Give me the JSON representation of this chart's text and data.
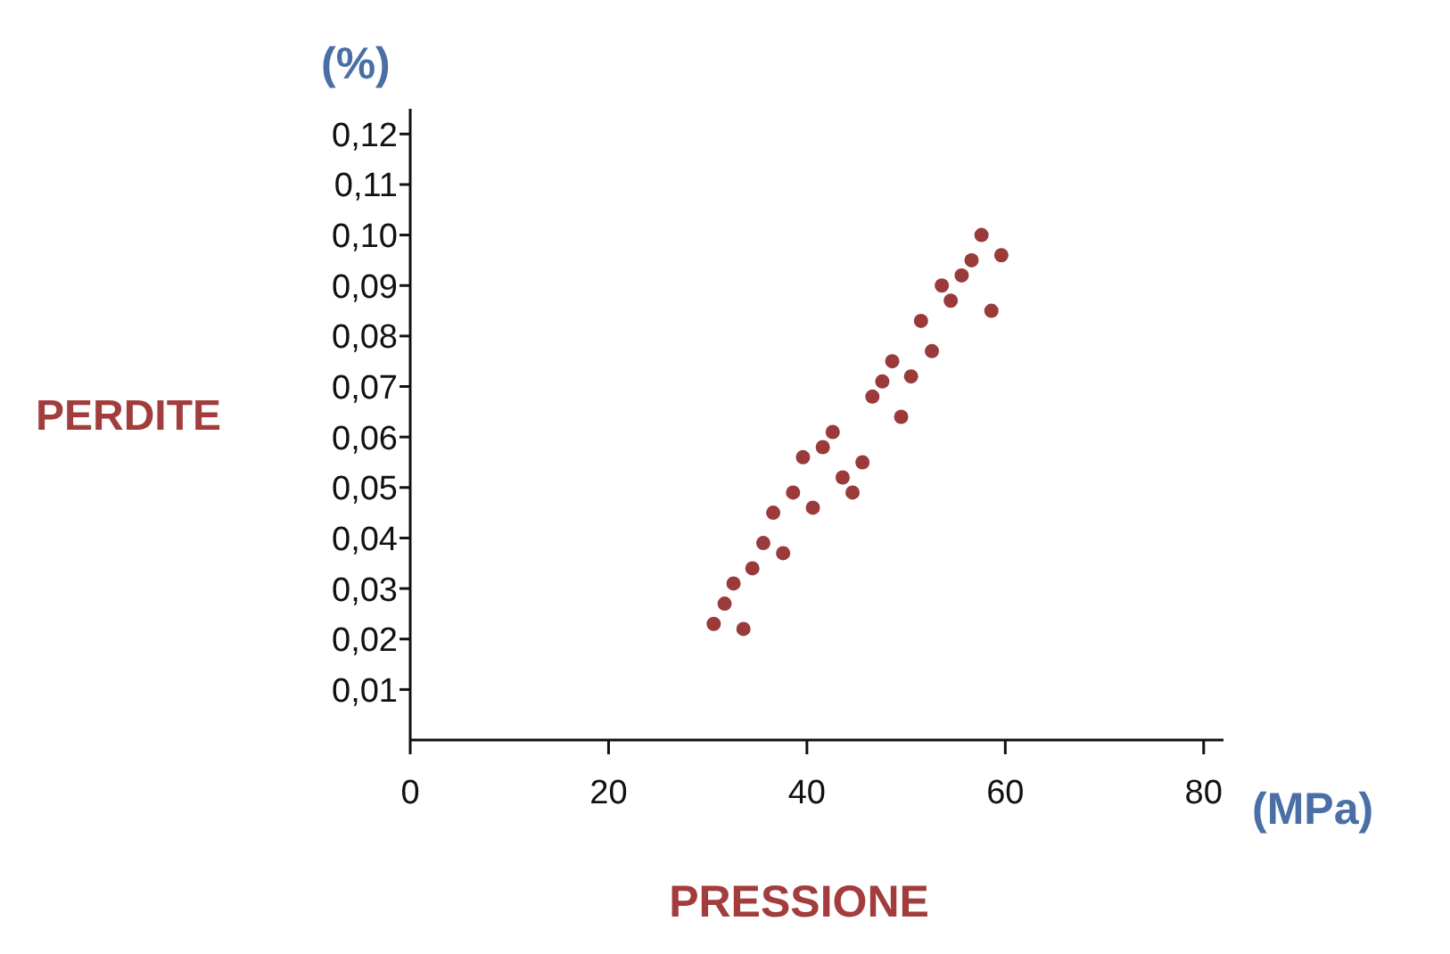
{
  "chart_data": {
    "type": "scatter",
    "xlabel": "PRESSIONE",
    "ylabel": "PERDITE",
    "annotations": [
      "(%)",
      "(MPa)"
    ],
    "xlim": [
      0,
      82
    ],
    "xticks": [
      0,
      20,
      40,
      60,
      80
    ],
    "ylim": [
      0,
      0.125
    ],
    "yticks": [
      {
        "value": 0.01,
        "label": "0,01"
      },
      {
        "value": 0.02,
        "label": "0,02"
      },
      {
        "value": 0.03,
        "label": "0,03"
      },
      {
        "value": 0.04,
        "label": "0,04"
      },
      {
        "value": 0.05,
        "label": "0,05"
      },
      {
        "value": 0.06,
        "label": "0,06"
      },
      {
        "value": 0.07,
        "label": "0,07"
      },
      {
        "value": 0.08,
        "label": "0,08"
      },
      {
        "value": 0.09,
        "label": "0,09"
      },
      {
        "value": 0.1,
        "label": "0,10"
      },
      {
        "value": 0.11,
        "label": "0,11"
      },
      {
        "value": 0.12,
        "label": "0,12"
      }
    ],
    "series": [
      {
        "color": "#9b3a3a",
        "x": [
          30.6,
          33.6,
          31.7,
          32.6,
          34.5,
          37.6,
          35.6,
          36.6,
          40.6,
          38.6,
          44.6,
          43.6,
          45.6,
          39.6,
          41.6,
          42.6,
          49.5,
          46.6,
          50.5,
          47.6,
          48.6,
          52.6,
          51.5,
          58.6,
          54.5,
          53.6,
          55.6,
          56.6,
          59.6,
          57.6
        ],
        "values": [
          0.023,
          0.022,
          0.027,
          0.031,
          0.034,
          0.037,
          0.039,
          0.045,
          0.046,
          0.049,
          0.049,
          0.052,
          0.055,
          0.056,
          0.058,
          0.061,
          0.064,
          0.068,
          0.072,
          0.071,
          0.075,
          0.077,
          0.083,
          0.085,
          0.087,
          0.09,
          0.092,
          0.095,
          0.096,
          0.1
        ]
      }
    ]
  }
}
